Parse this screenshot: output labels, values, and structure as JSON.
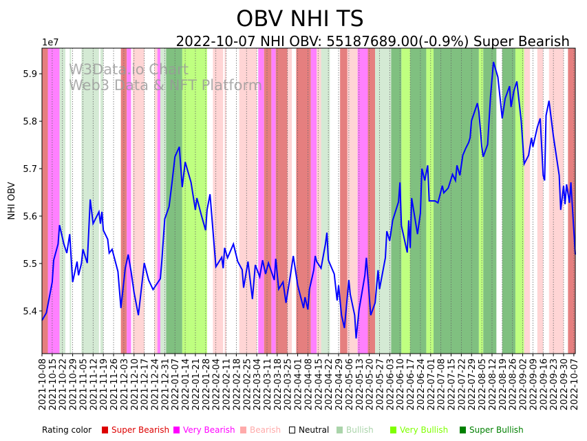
{
  "chart_data": {
    "type": "line",
    "title": "OBV NHI TS",
    "subtitle": "2022-10-07 NHI OBV: 55187689.00(-0.9%) Super Bearish",
    "ylabel": "NHI OBV",
    "y_multiplier": "1e7",
    "ylim": [
      5.31,
      5.954
    ],
    "yticks": [
      "5.4",
      "5.5",
      "5.6",
      "5.7",
      "5.8",
      "5.9"
    ],
    "start_date": "2021-10-08",
    "xlim_days": [
      0,
      365
    ],
    "xticks": [
      "2021-10-08",
      "2021-10-15",
      "2021-10-22",
      "2021-10-29",
      "2021-11-05",
      "2021-11-12",
      "2021-11-19",
      "2021-11-26",
      "2021-12-03",
      "2021-12-10",
      "2021-12-17",
      "2021-12-24",
      "2021-12-31",
      "2022-01-07",
      "2022-01-14",
      "2022-01-21",
      "2022-01-28",
      "2022-02-04",
      "2022-02-11",
      "2022-02-18",
      "2022-02-25",
      "2022-03-04",
      "2022-03-11",
      "2022-03-18",
      "2022-03-25",
      "2022-04-01",
      "2022-04-08",
      "2022-04-15",
      "2022-04-22",
      "2022-04-29",
      "2022-05-06",
      "2022-05-13",
      "2022-05-20",
      "2022-05-27",
      "2022-06-03",
      "2022-06-10",
      "2022-06-17",
      "2022-06-24",
      "2022-07-01",
      "2022-07-08",
      "2022-07-15",
      "2022-07-22",
      "2022-07-29",
      "2022-08-05",
      "2022-08-12",
      "2022-08-19",
      "2022-08-26",
      "2022-09-02",
      "2022-09-09",
      "2022-09-16",
      "2022-09-23",
      "2022-09-30",
      "2022-10-07"
    ],
    "series": [
      {
        "name": "OBV",
        "color": "#0000ff",
        "points": [
          [
            0,
            5.38
          ],
          [
            3,
            5.396
          ],
          [
            7,
            5.461
          ],
          [
            8,
            5.507
          ],
          [
            11,
            5.541
          ],
          [
            12,
            5.581
          ],
          [
            15,
            5.541
          ],
          [
            17,
            5.522
          ],
          [
            19,
            5.562
          ],
          [
            21,
            5.461
          ],
          [
            24,
            5.504
          ],
          [
            25,
            5.475
          ],
          [
            27,
            5.5
          ],
          [
            28,
            5.53
          ],
          [
            31,
            5.501
          ],
          [
            33,
            5.635
          ],
          [
            35,
            5.584
          ],
          [
            39,
            5.609
          ],
          [
            40,
            5.584
          ],
          [
            41,
            5.609
          ],
          [
            42,
            5.57
          ],
          [
            45,
            5.551
          ],
          [
            46,
            5.522
          ],
          [
            48,
            5.53
          ],
          [
            52,
            5.483
          ],
          [
            54,
            5.406
          ],
          [
            57,
            5.49
          ],
          [
            59,
            5.519
          ],
          [
            61,
            5.483
          ],
          [
            63,
            5.439
          ],
          [
            66,
            5.391
          ],
          [
            70,
            5.501
          ],
          [
            73,
            5.465
          ],
          [
            76,
            5.445
          ],
          [
            81,
            5.468
          ],
          [
            82,
            5.504
          ],
          [
            84,
            5.594
          ],
          [
            87,
            5.62
          ],
          [
            89,
            5.671
          ],
          [
            91,
            5.725
          ],
          [
            94,
            5.746
          ],
          [
            96,
            5.661
          ],
          [
            98,
            5.714
          ],
          [
            102,
            5.671
          ],
          [
            105,
            5.613
          ],
          [
            106,
            5.638
          ],
          [
            109,
            5.603
          ],
          [
            112,
            5.57
          ],
          [
            113,
            5.613
          ],
          [
            115,
            5.646
          ],
          [
            119,
            5.493
          ],
          [
            123,
            5.513
          ],
          [
            124,
            5.49
          ],
          [
            125,
            5.533
          ],
          [
            127,
            5.512
          ],
          [
            131,
            5.541
          ],
          [
            134,
            5.504
          ],
          [
            137,
            5.487
          ],
          [
            138,
            5.449
          ],
          [
            141,
            5.504
          ],
          [
            144,
            5.425
          ],
          [
            146,
            5.497
          ],
          [
            149,
            5.472
          ],
          [
            151,
            5.507
          ],
          [
            153,
            5.478
          ],
          [
            155,
            5.501
          ],
          [
            159,
            5.465
          ],
          [
            160,
            5.51
          ],
          [
            162,
            5.446
          ],
          [
            165,
            5.461
          ],
          [
            167,
            5.417
          ],
          [
            170,
            5.475
          ],
          [
            172,
            5.516
          ],
          [
            175,
            5.454
          ],
          [
            179,
            5.406
          ],
          [
            180,
            5.429
          ],
          [
            182,
            5.403
          ],
          [
            183,
            5.445
          ],
          [
            186,
            5.486
          ],
          [
            187,
            5.516
          ],
          [
            188,
            5.504
          ],
          [
            191,
            5.49
          ],
          [
            194,
            5.541
          ],
          [
            195,
            5.565
          ],
          [
            196,
            5.507
          ],
          [
            200,
            5.478
          ],
          [
            202,
            5.422
          ],
          [
            203,
            5.454
          ],
          [
            205,
            5.391
          ],
          [
            207,
            5.364
          ],
          [
            210,
            5.465
          ],
          [
            211,
            5.435
          ],
          [
            214,
            5.391
          ],
          [
            215,
            5.342
          ],
          [
            217,
            5.403
          ],
          [
            221,
            5.475
          ],
          [
            222,
            5.512
          ],
          [
            225,
            5.391
          ],
          [
            228,
            5.417
          ],
          [
            230,
            5.486
          ],
          [
            231,
            5.446
          ],
          [
            235,
            5.512
          ],
          [
            236,
            5.568
          ],
          [
            238,
            5.548
          ],
          [
            240,
            5.591
          ],
          [
            244,
            5.63
          ],
          [
            245,
            5.671
          ],
          [
            246,
            5.58
          ],
          [
            250,
            5.523
          ],
          [
            251,
            5.591
          ],
          [
            252,
            5.533
          ],
          [
            253,
            5.638
          ],
          [
            257,
            5.562
          ],
          [
            259,
            5.606
          ],
          [
            260,
            5.7
          ],
          [
            262,
            5.675
          ],
          [
            264,
            5.707
          ],
          [
            265,
            5.632
          ],
          [
            269,
            5.632
          ],
          [
            271,
            5.628
          ],
          [
            274,
            5.664
          ],
          [
            275,
            5.649
          ],
          [
            278,
            5.659
          ],
          [
            281,
            5.688
          ],
          [
            283,
            5.675
          ],
          [
            284,
            5.707
          ],
          [
            286,
            5.686
          ],
          [
            288,
            5.728
          ],
          [
            290,
            5.743
          ],
          [
            292,
            5.755
          ],
          [
            293,
            5.765
          ],
          [
            294,
            5.801
          ],
          [
            298,
            5.838
          ],
          [
            299,
            5.82
          ],
          [
            301,
            5.746
          ],
          [
            302,
            5.725
          ],
          [
            305,
            5.751
          ],
          [
            307,
            5.852
          ],
          [
            309,
            5.925
          ],
          [
            312,
            5.893
          ],
          [
            315,
            5.806
          ],
          [
            317,
            5.848
          ],
          [
            320,
            5.874
          ],
          [
            321,
            5.83
          ],
          [
            323,
            5.864
          ],
          [
            325,
            5.884
          ],
          [
            328,
            5.801
          ],
          [
            330,
            5.71
          ],
          [
            333,
            5.728
          ],
          [
            335,
            5.765
          ],
          [
            336,
            5.746
          ],
          [
            339,
            5.787
          ],
          [
            341,
            5.806
          ],
          [
            343,
            5.686
          ],
          [
            344,
            5.675
          ],
          [
            345,
            5.812
          ],
          [
            347,
            5.843
          ],
          [
            350,
            5.768
          ],
          [
            354,
            5.686
          ],
          [
            355,
            5.613
          ],
          [
            357,
            5.664
          ],
          [
            358,
            5.625
          ],
          [
            359,
            5.667
          ],
          [
            361,
            5.628
          ],
          [
            362,
            5.671
          ],
          [
            365,
            5.519
          ]
        ]
      }
    ],
    "rating_bands": [
      [
        0,
        4,
        "super_bearish"
      ],
      [
        4,
        12,
        "very_bearish"
      ],
      [
        12,
        16,
        "bullish"
      ],
      [
        19,
        20,
        "bullish"
      ],
      [
        27,
        39,
        "bullish"
      ],
      [
        40,
        42,
        "bullish"
      ],
      [
        54,
        58,
        "super_bearish"
      ],
      [
        58,
        61,
        "very_bearish"
      ],
      [
        62,
        70,
        "bearish"
      ],
      [
        77,
        79,
        "bearish"
      ],
      [
        79,
        81,
        "very_bearish"
      ],
      [
        81,
        85,
        "bullish"
      ],
      [
        85,
        96,
        "super_bullish"
      ],
      [
        96,
        101,
        "very_bullish"
      ],
      [
        101,
        113,
        "very_bullish"
      ],
      [
        117,
        124,
        "bearish"
      ],
      [
        125,
        126,
        "bearish"
      ],
      [
        135,
        147,
        "bearish"
      ],
      [
        148,
        152,
        "very_bearish"
      ],
      [
        152,
        157,
        "super_bearish"
      ],
      [
        157,
        160,
        "very_bearish"
      ],
      [
        160,
        168,
        "super_bearish"
      ],
      [
        168,
        171,
        "bearish"
      ],
      [
        174,
        184,
        "super_bearish"
      ],
      [
        184,
        188,
        "very_bearish"
      ],
      [
        188,
        191,
        "bearish"
      ],
      [
        191,
        197,
        "bullish"
      ],
      [
        204,
        209,
        "super_bearish"
      ],
      [
        209,
        216,
        "bearish"
      ],
      [
        216,
        223,
        "very_bearish"
      ],
      [
        223,
        228,
        "super_bearish"
      ],
      [
        228,
        239,
        "bullish"
      ],
      [
        239,
        246,
        "super_bullish"
      ],
      [
        246,
        252,
        "very_bullish"
      ],
      [
        252,
        263,
        "super_bullish"
      ],
      [
        263,
        268,
        "very_bullish"
      ],
      [
        268,
        299,
        "super_bullish"
      ],
      [
        299,
        302,
        "very_bullish"
      ],
      [
        302,
        311,
        "super_bullish"
      ],
      [
        315,
        324,
        "super_bullish"
      ],
      [
        324,
        330,
        "very_bullish"
      ],
      [
        330,
        334,
        "bearish"
      ],
      [
        339,
        343,
        "bearish"
      ],
      [
        347,
        357,
        "bearish"
      ],
      [
        360,
        365,
        "super_bearish"
      ]
    ],
    "legend": {
      "title": "Rating color",
      "placement": "bottom",
      "items": [
        {
          "key": "super_bearish",
          "label": "Super Bearish",
          "color": "#dd0000",
          "filled": true
        },
        {
          "key": "very_bearish",
          "label": "Very Bearish",
          "color": "#ff00ff",
          "filled": true
        },
        {
          "key": "bearish",
          "label": "Bearish",
          "color": "#ffaaaa",
          "filled": true
        },
        {
          "key": "neutral",
          "label": "Neutral",
          "color": "#000000",
          "filled": false
        },
        {
          "key": "bullish",
          "label": "Bullish",
          "color": "#aad4aa",
          "filled": true
        },
        {
          "key": "very_bullish",
          "label": "Very Bullish",
          "color": "#7fff00",
          "filled": true
        },
        {
          "key": "super_bullish",
          "label": "Super Bullish",
          "color": "#008000",
          "filled": true
        }
      ]
    },
    "band_colors": {
      "super_bearish": "#e57f7f",
      "very_bearish": "#ff80ff",
      "bearish": "#ffd5d5",
      "bullish": "#d4ead4",
      "very_bullish": "#bfff80",
      "super_bullish": "#80c080"
    }
  },
  "watermark": [
    "W3Data.io Chart",
    "Web3 Data & NFT Platform"
  ]
}
